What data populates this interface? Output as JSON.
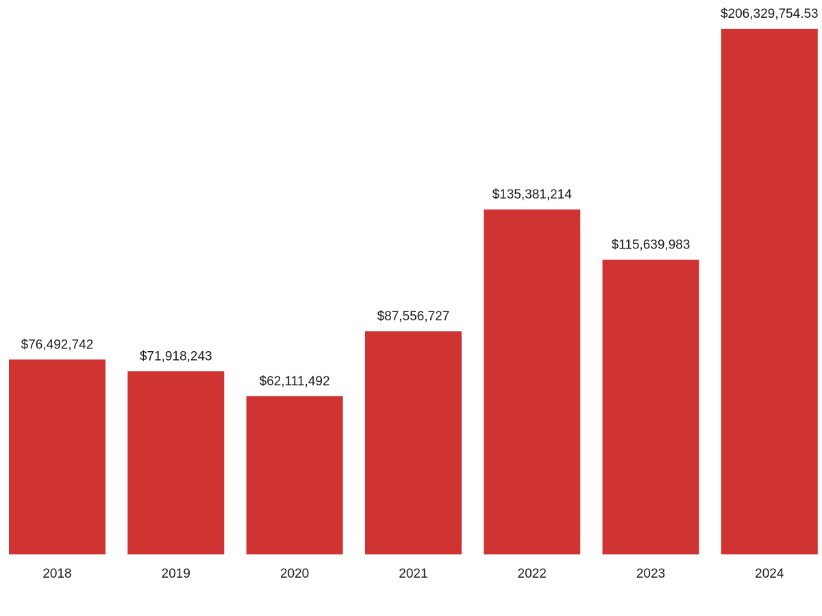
{
  "chart_data": {
    "type": "bar",
    "title": "",
    "xlabel": "",
    "ylabel": "",
    "categories": [
      "2018",
      "2019",
      "2020",
      "2021",
      "2022",
      "2023",
      "2024"
    ],
    "values": [
      76492742,
      71918243,
      62111492,
      87556727,
      135381214,
      115639983,
      206329754.53
    ],
    "data_labels": [
      "$76,492,742",
      "$71,918,243",
      "$62,111,492",
      "$87,556,727",
      "$135,381,214",
      "$115,639,983",
      "$206,329,754.53"
    ],
    "ylim": [
      0,
      206329754.53
    ],
    "grid": false,
    "legend": "none",
    "bar_color": "#cf3433",
    "text_color": "#1a1a1a",
    "background_color": "#ffffff"
  }
}
